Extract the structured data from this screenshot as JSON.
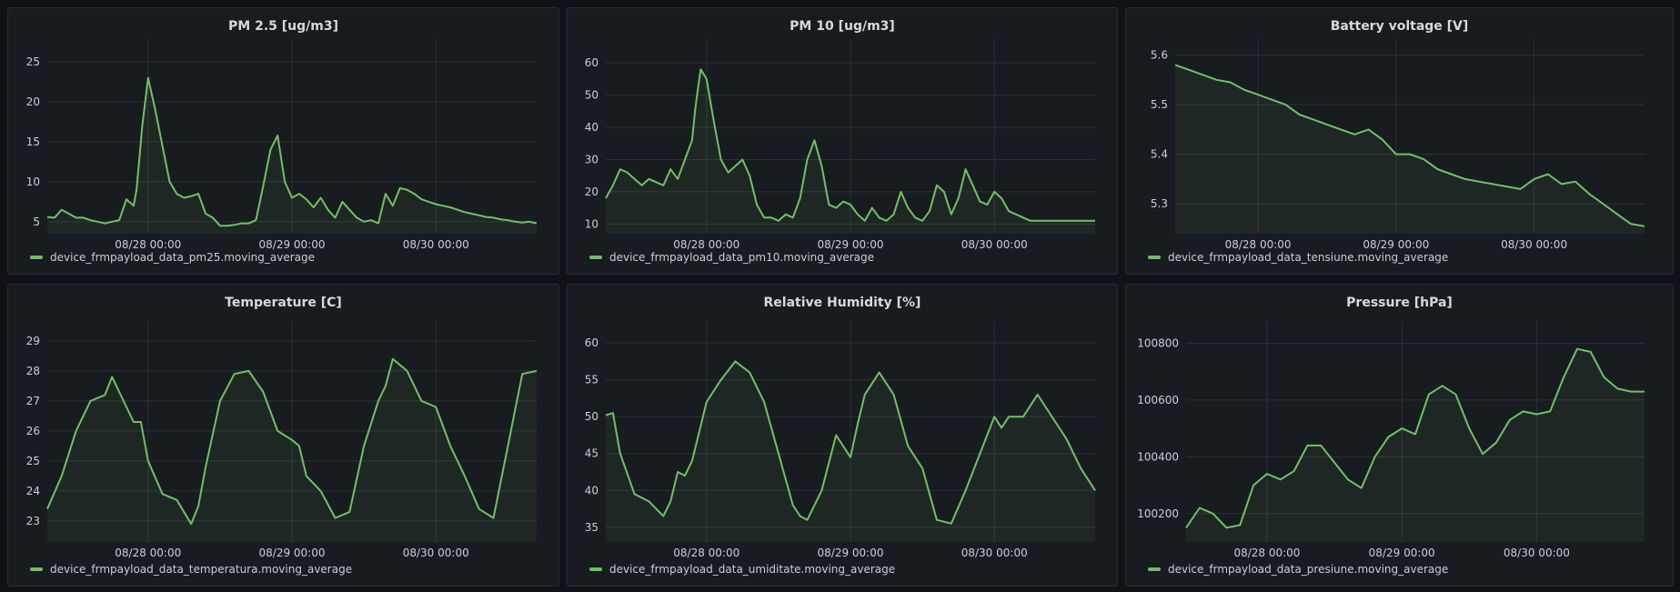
{
  "colors": {
    "series": "#73bf69",
    "background": "#111217",
    "panel": "#181b1f"
  },
  "chart_data": [
    {
      "type": "line",
      "title": "PM 2.5 [ug/m3]",
      "series": [
        {
          "name": "device_frmpayload_data_pm25.moving_average",
          "x": [
            0,
            0.05,
            0.1,
            0.15,
            0.2,
            0.25,
            0.3,
            0.35,
            0.4,
            0.45,
            0.5,
            0.55,
            0.6,
            0.62,
            0.64,
            0.66,
            0.7,
            0.75,
            0.8,
            0.85,
            0.9,
            0.95,
            1.0,
            1.05,
            1.1,
            1.15,
            1.2,
            1.25,
            1.3,
            1.35,
            1.4,
            1.45,
            1.5,
            1.55,
            1.6,
            1.65,
            1.7,
            1.75,
            1.8,
            1.85,
            1.9,
            1.95,
            2.0,
            2.05,
            2.1,
            2.15,
            2.2,
            2.25,
            2.3,
            2.35,
            2.4,
            2.45,
            2.5,
            2.55,
            2.6,
            2.65,
            2.7,
            2.75,
            2.8,
            2.85,
            2.9,
            2.95,
            3.0,
            3.05,
            3.1,
            3.15,
            3.2,
            3.25,
            3.3,
            3.35,
            3.4
          ],
          "y": [
            5.6,
            5.5,
            6.5,
            6.0,
            5.5,
            5.5,
            5.2,
            5.0,
            4.8,
            5.0,
            5.2,
            7.8,
            7.0,
            9.0,
            13.0,
            17.0,
            23.0,
            19.0,
            14.5,
            10.0,
            8.5,
            8.0,
            8.2,
            8.5,
            6.0,
            5.5,
            4.5,
            4.5,
            4.6,
            4.8,
            4.8,
            5.2,
            9.5,
            14.0,
            15.8,
            10.0,
            8.0,
            8.5,
            7.8,
            6.8,
            8.0,
            6.5,
            5.5,
            7.5,
            6.5,
            5.5,
            5.0,
            5.2,
            4.8,
            8.5,
            7.0,
            9.2,
            9.0,
            8.5,
            7.8,
            7.5,
            7.2,
            7.0,
            6.8,
            6.5,
            6.2,
            6.0,
            5.8,
            5.6,
            5.5,
            5.3,
            5.2,
            5.0,
            4.9,
            5.0,
            4.8
          ]
        }
      ],
      "x_ticks": [
        "08/28 00:00",
        "08/29 00:00",
        "08/30 00:00"
      ],
      "x_tick_pos": [
        0.7,
        1.7,
        2.7
      ],
      "xlim": [
        0,
        3.4
      ],
      "y_ticks": [
        "5",
        "10",
        "15",
        "20",
        "25"
      ],
      "y_tick_vals": [
        5,
        10,
        15,
        20,
        25
      ],
      "ylim": [
        3.5,
        26.5
      ],
      "grid": true
    },
    {
      "type": "line",
      "title": "PM 10 [ug/m3]",
      "series": [
        {
          "name": "device_frmpayload_data_pm10.moving_average",
          "x": [
            0,
            0.05,
            0.1,
            0.15,
            0.2,
            0.25,
            0.3,
            0.35,
            0.4,
            0.45,
            0.5,
            0.55,
            0.6,
            0.62,
            0.64,
            0.66,
            0.7,
            0.75,
            0.8,
            0.85,
            0.9,
            0.95,
            1.0,
            1.05,
            1.1,
            1.15,
            1.2,
            1.25,
            1.3,
            1.35,
            1.4,
            1.45,
            1.5,
            1.55,
            1.6,
            1.65,
            1.7,
            1.75,
            1.8,
            1.85,
            1.9,
            1.95,
            2.0,
            2.05,
            2.1,
            2.15,
            2.2,
            2.25,
            2.3,
            2.35,
            2.4,
            2.45,
            2.5,
            2.55,
            2.6,
            2.65,
            2.7,
            2.75,
            2.8,
            2.85,
            2.9,
            2.95,
            3.0,
            3.05,
            3.1,
            3.15,
            3.2,
            3.25,
            3.3,
            3.35,
            3.4
          ],
          "y": [
            18,
            22,
            27,
            26,
            24,
            22,
            24,
            23,
            22,
            27,
            24,
            30,
            36,
            45,
            52,
            58,
            55,
            42,
            30,
            26,
            28,
            30,
            25,
            16,
            12,
            12,
            11,
            13,
            12,
            18,
            30,
            36,
            28,
            16,
            15,
            17,
            16,
            13,
            11,
            15,
            12,
            11,
            13,
            20,
            15,
            12,
            11,
            14,
            22,
            20,
            13,
            18,
            27,
            22,
            17,
            16,
            20,
            18,
            14,
            13,
            12,
            11,
            11,
            11,
            11,
            11,
            11,
            11,
            11,
            11,
            11
          ]
        }
      ],
      "x_ticks": [
        "08/28 00:00",
        "08/29 00:00",
        "08/30 00:00"
      ],
      "x_tick_pos": [
        0.7,
        1.7,
        2.7
      ],
      "xlim": [
        0,
        3.4
      ],
      "y_ticks": [
        "10",
        "20",
        "30",
        "40",
        "50",
        "60"
      ],
      "y_tick_vals": [
        10,
        20,
        30,
        40,
        50,
        60
      ],
      "ylim": [
        7,
        64
      ],
      "grid": true
    },
    {
      "type": "line",
      "title": "Battery voltage [V]",
      "series": [
        {
          "name": "device_frmpayload_data_tensiune.moving_average",
          "x": [
            0,
            0.1,
            0.2,
            0.3,
            0.4,
            0.5,
            0.6,
            0.7,
            0.8,
            0.9,
            1.0,
            1.1,
            1.2,
            1.3,
            1.4,
            1.5,
            1.6,
            1.7,
            1.8,
            1.9,
            2.0,
            2.1,
            2.2,
            2.3,
            2.4,
            2.5,
            2.6,
            2.7,
            2.8,
            2.9,
            3.0,
            3.1,
            3.2,
            3.3,
            3.4
          ],
          "y": [
            5.58,
            5.57,
            5.56,
            5.55,
            5.545,
            5.53,
            5.52,
            5.51,
            5.5,
            5.48,
            5.47,
            5.46,
            5.45,
            5.44,
            5.45,
            5.43,
            5.4,
            5.4,
            5.39,
            5.37,
            5.36,
            5.35,
            5.345,
            5.34,
            5.335,
            5.33,
            5.35,
            5.36,
            5.34,
            5.345,
            5.32,
            5.3,
            5.28,
            5.26,
            5.255
          ]
        }
      ],
      "x_ticks": [
        "08/28 00:00",
        "08/29 00:00",
        "08/30 00:00"
      ],
      "x_tick_pos": [
        0.6,
        1.6,
        2.6
      ],
      "xlim": [
        0,
        3.4
      ],
      "y_ticks": [
        "5.3",
        "5.4",
        "5.5",
        "5.6"
      ],
      "y_tick_vals": [
        5.3,
        5.4,
        5.5,
        5.6
      ],
      "ylim": [
        5.24,
        5.61
      ],
      "grid": true
    },
    {
      "type": "line",
      "title": "Temperature [C]",
      "series": [
        {
          "name": "device_frmpayload_data_temperatura.moving_average",
          "x": [
            0,
            0.1,
            0.2,
            0.3,
            0.4,
            0.45,
            0.5,
            0.6,
            0.65,
            0.7,
            0.8,
            0.9,
            1.0,
            1.05,
            1.1,
            1.2,
            1.3,
            1.4,
            1.5,
            1.6,
            1.7,
            1.75,
            1.8,
            1.9,
            2.0,
            2.1,
            2.2,
            2.3,
            2.35,
            2.4,
            2.5,
            2.6,
            2.7,
            2.8,
            2.9,
            3.0,
            3.1,
            3.2,
            3.3,
            3.4
          ],
          "y": [
            23.4,
            24.5,
            26,
            27,
            27.2,
            27.8,
            27.3,
            26.3,
            26.3,
            25,
            23.9,
            23.7,
            22.9,
            23.5,
            24.8,
            27,
            27.9,
            28,
            27.3,
            26,
            25.7,
            25.5,
            24.5,
            24,
            23.1,
            23.3,
            25.5,
            27,
            27.5,
            28.4,
            28,
            27,
            26.8,
            25.5,
            24.5,
            23.4,
            23.1,
            25.5,
            27.9,
            28
          ]
        }
      ],
      "x_ticks": [
        "08/28 00:00",
        "08/29 00:00",
        "08/30 00:00"
      ],
      "x_tick_pos": [
        0.7,
        1.7,
        2.7
      ],
      "xlim": [
        0,
        3.4
      ],
      "y_ticks": [
        "23",
        "24",
        "25",
        "26",
        "27",
        "28",
        "29"
      ],
      "y_tick_vals": [
        23,
        24,
        25,
        26,
        27,
        28,
        29
      ],
      "ylim": [
        22.3,
        29.3
      ],
      "grid": true
    },
    {
      "type": "line",
      "title": "Relative Humidity [%]",
      "series": [
        {
          "name": "device_frmpayload_data_umiditate.moving_average",
          "x": [
            0,
            0.05,
            0.1,
            0.2,
            0.3,
            0.4,
            0.45,
            0.5,
            0.55,
            0.6,
            0.7,
            0.8,
            0.9,
            1.0,
            1.1,
            1.2,
            1.3,
            1.35,
            1.4,
            1.5,
            1.6,
            1.7,
            1.75,
            1.8,
            1.9,
            2.0,
            2.1,
            2.2,
            2.3,
            2.4,
            2.5,
            2.6,
            2.7,
            2.75,
            2.8,
            2.9,
            3.0,
            3.1,
            3.2,
            3.3,
            3.4
          ],
          "y": [
            50.2,
            50.5,
            45,
            39.5,
            38.5,
            36.5,
            38.5,
            42.5,
            42,
            44,
            52,
            55,
            57.5,
            56,
            52,
            45,
            38,
            36.5,
            36,
            40,
            47.5,
            44.5,
            49,
            53,
            56,
            53,
            46,
            43,
            36,
            35.5,
            40,
            45,
            50,
            48.5,
            50,
            50,
            53,
            50,
            47,
            43,
            40
          ]
        }
      ],
      "x_ticks": [
        "08/28 00:00",
        "08/29 00:00",
        "08/30 00:00"
      ],
      "x_tick_pos": [
        0.7,
        1.7,
        2.7
      ],
      "xlim": [
        0,
        3.4
      ],
      "y_ticks": [
        "35",
        "40",
        "45",
        "50",
        "55",
        "60"
      ],
      "y_tick_vals": [
        35,
        40,
        45,
        50,
        55,
        60
      ],
      "ylim": [
        33,
        61.5
      ],
      "grid": true
    },
    {
      "type": "line",
      "title": "Pressure [hPa]",
      "series": [
        {
          "name": "device_frmpayload_data_presiune.moving_average",
          "x": [
            0,
            0.1,
            0.2,
            0.3,
            0.4,
            0.5,
            0.6,
            0.7,
            0.8,
            0.9,
            1.0,
            1.1,
            1.2,
            1.3,
            1.4,
            1.5,
            1.6,
            1.7,
            1.8,
            1.9,
            2.0,
            2.1,
            2.2,
            2.3,
            2.4,
            2.5,
            2.6,
            2.7,
            2.8,
            2.9,
            3.0,
            3.1,
            3.2,
            3.3,
            3.4
          ],
          "y": [
            100150,
            100220,
            100200,
            100150,
            100160,
            100300,
            100340,
            100320,
            100350,
            100440,
            100440,
            100380,
            100320,
            100290,
            100400,
            100470,
            100500,
            100480,
            100620,
            100650,
            100620,
            100500,
            100410,
            100450,
            100530,
            100560,
            100550,
            100560,
            100680,
            100780,
            100770,
            100680,
            100640,
            100630,
            100630
          ]
        }
      ],
      "x_ticks": [
        "08/28 00:00",
        "08/29 00:00",
        "08/30 00:00"
      ],
      "x_tick_pos": [
        0.6,
        1.6,
        2.6
      ],
      "xlim": [
        0,
        3.4
      ],
      "y_ticks": [
        "100200",
        "100400",
        "100600",
        "100800"
      ],
      "y_tick_vals": [
        100200,
        100400,
        100600,
        100800
      ],
      "ylim": [
        100100,
        100840
      ],
      "grid": true
    }
  ]
}
